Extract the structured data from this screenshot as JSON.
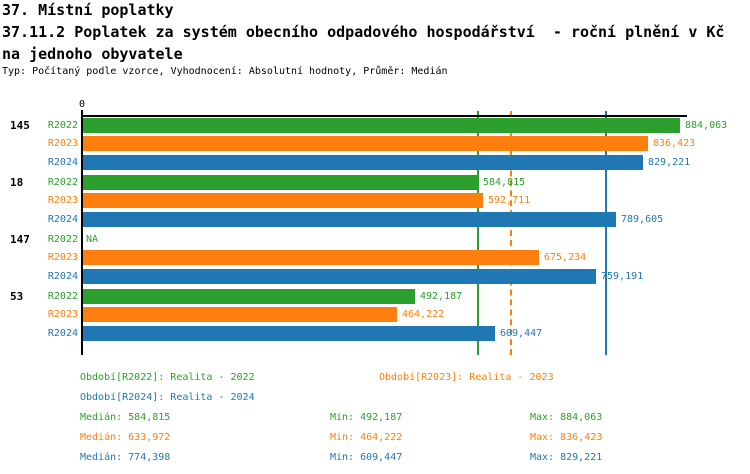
{
  "header": {
    "line1": "37. Místní poplatky",
    "line2": "37.11.2 Poplatek za systém obecního odpadového hospodářství  - roční plnění v Kč",
    "line3": "na jednoho obyvatele",
    "meta": "Typ: Počítaný podle vzorce, Vyhodnocení: Absolutní hodnoty, Průměr: Medián"
  },
  "chart_data": {
    "type": "bar",
    "orientation": "horizontal",
    "title": "37.11.2 Poplatek za systém obecního odpadového hospodářství - roční plnění v Kč na jednoho obyvatele",
    "value_axis": {
      "zero_label": "0",
      "min": 0,
      "gridlines": "median line per series"
    },
    "series": [
      {
        "id": "r2022",
        "label": "R2022",
        "color": "#2ca02c",
        "median": 584815,
        "median_display": "584,815",
        "median_line_style": "solid"
      },
      {
        "id": "r2023",
        "label": "R2023",
        "color": "#ff7f0e",
        "median": 633972,
        "median_display": "633,972",
        "median_line_style": "dashed"
      },
      {
        "id": "r2024",
        "label": "R2024",
        "color": "#1f77b4",
        "median": 774398,
        "median_display": "774,398",
        "median_line_style": "solid"
      }
    ],
    "groups": [
      {
        "label": "145",
        "values": [
          884063,
          836423,
          829221
        ],
        "displays": [
          "884,063",
          "836,423",
          "829,221"
        ]
      },
      {
        "label": "18",
        "values": [
          584815,
          592711,
          789605
        ],
        "displays": [
          "584,815",
          "592,711",
          "789,605"
        ]
      },
      {
        "label": "147",
        "values": [
          null,
          675234,
          759191
        ],
        "displays": [
          "NA",
          "675,234",
          "759,191"
        ]
      },
      {
        "label": "53",
        "values": [
          492187,
          464222,
          609447
        ],
        "displays": [
          "492,187",
          "464,222",
          "609,447"
        ]
      }
    ],
    "legend": [
      {
        "label": "Období[R2022]: Realita - 2022"
      },
      {
        "label": "Období[R2023]: Realita - 2023"
      },
      {
        "label": "Období[R2024]: Realita - 2024"
      }
    ],
    "stats": [
      {
        "median": "Medián: 584,815",
        "min": "Min: 492,187",
        "max": "Max: 884,063"
      },
      {
        "median": "Medián: 633,972",
        "min": "Min: 464,222",
        "max": "Max: 836,423"
      },
      {
        "median": "Medián: 774,398",
        "min": "Min: 609,447",
        "max": "Max: 829,221"
      }
    ]
  }
}
